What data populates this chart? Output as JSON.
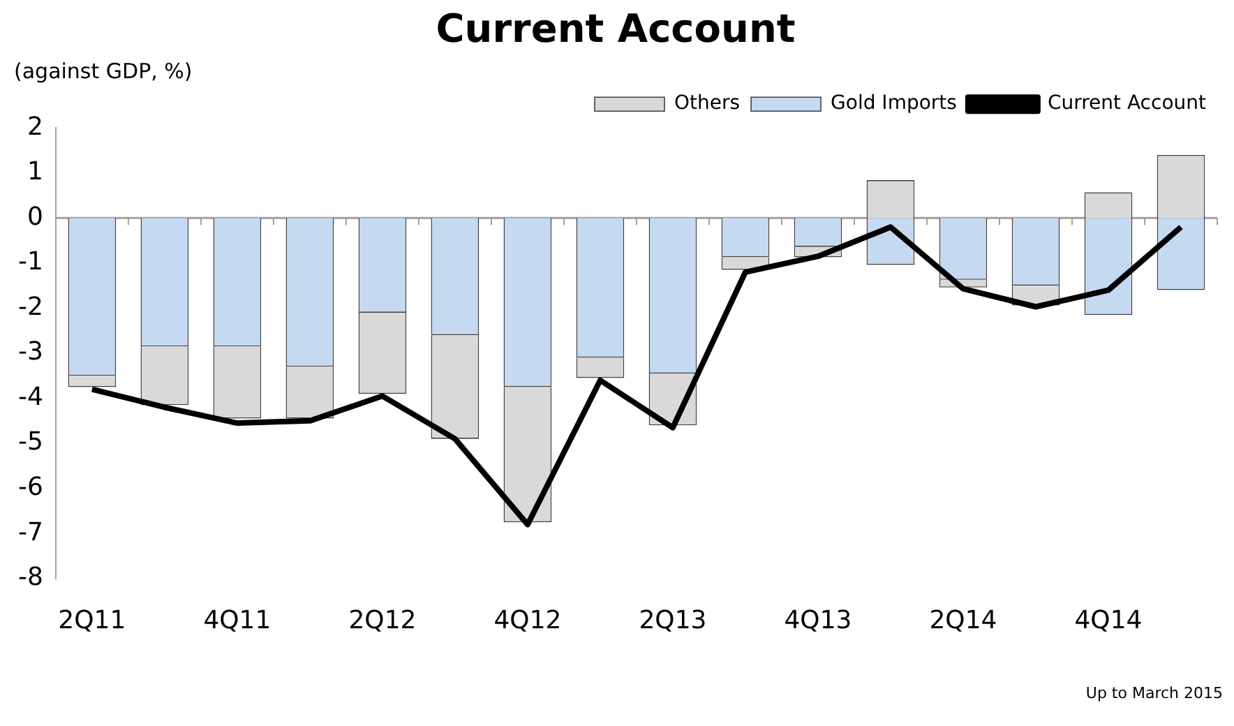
{
  "chart_data": {
    "type": "bar",
    "stacked": true,
    "title": "Current Account",
    "ylabel": "(against GDP, %)",
    "categories": [
      "2Q11",
      null,
      "4Q11",
      null,
      "2Q12",
      null,
      "4Q12",
      null,
      "2Q13",
      null,
      "4Q13",
      null,
      "2Q14",
      null,
      "4Q14",
      null
    ],
    "series": [
      {
        "name": "Gold Imports",
        "color": "#c5d9f1",
        "values": [
          -3.5,
          -2.85,
          -2.85,
          -3.3,
          -2.1,
          -2.6,
          -3.75,
          -3.1,
          -3.45,
          -0.87,
          -0.64,
          -1.04,
          -1.37,
          -1.5,
          -2.15,
          -1.6
        ]
      },
      {
        "name": "Others",
        "color": "#d9d9d9",
        "values": [
          -0.25,
          -1.3,
          -1.6,
          -1.15,
          -1.8,
          -2.3,
          -3.0,
          -0.45,
          -1.15,
          -0.28,
          -0.23,
          0.84,
          -0.17,
          -0.44,
          0.57,
          1.4
        ]
      },
      {
        "name": "Current Account",
        "type": "line",
        "color": "#000000",
        "values": [
          -3.8,
          -4.2,
          -4.55,
          -4.5,
          -3.95,
          -4.9,
          -6.8,
          -3.6,
          -4.65,
          -1.2,
          -0.85,
          -0.2,
          -1.57,
          -1.97,
          -1.6,
          -0.2
        ]
      }
    ],
    "ylim": [
      -8,
      2
    ],
    "yticks": [
      -8,
      -7,
      -6,
      -5,
      -4,
      -3,
      -2,
      -1,
      0,
      1,
      2
    ],
    "legend": "top right",
    "marker": "none",
    "annotations": [
      "Up to March 2015"
    ]
  }
}
